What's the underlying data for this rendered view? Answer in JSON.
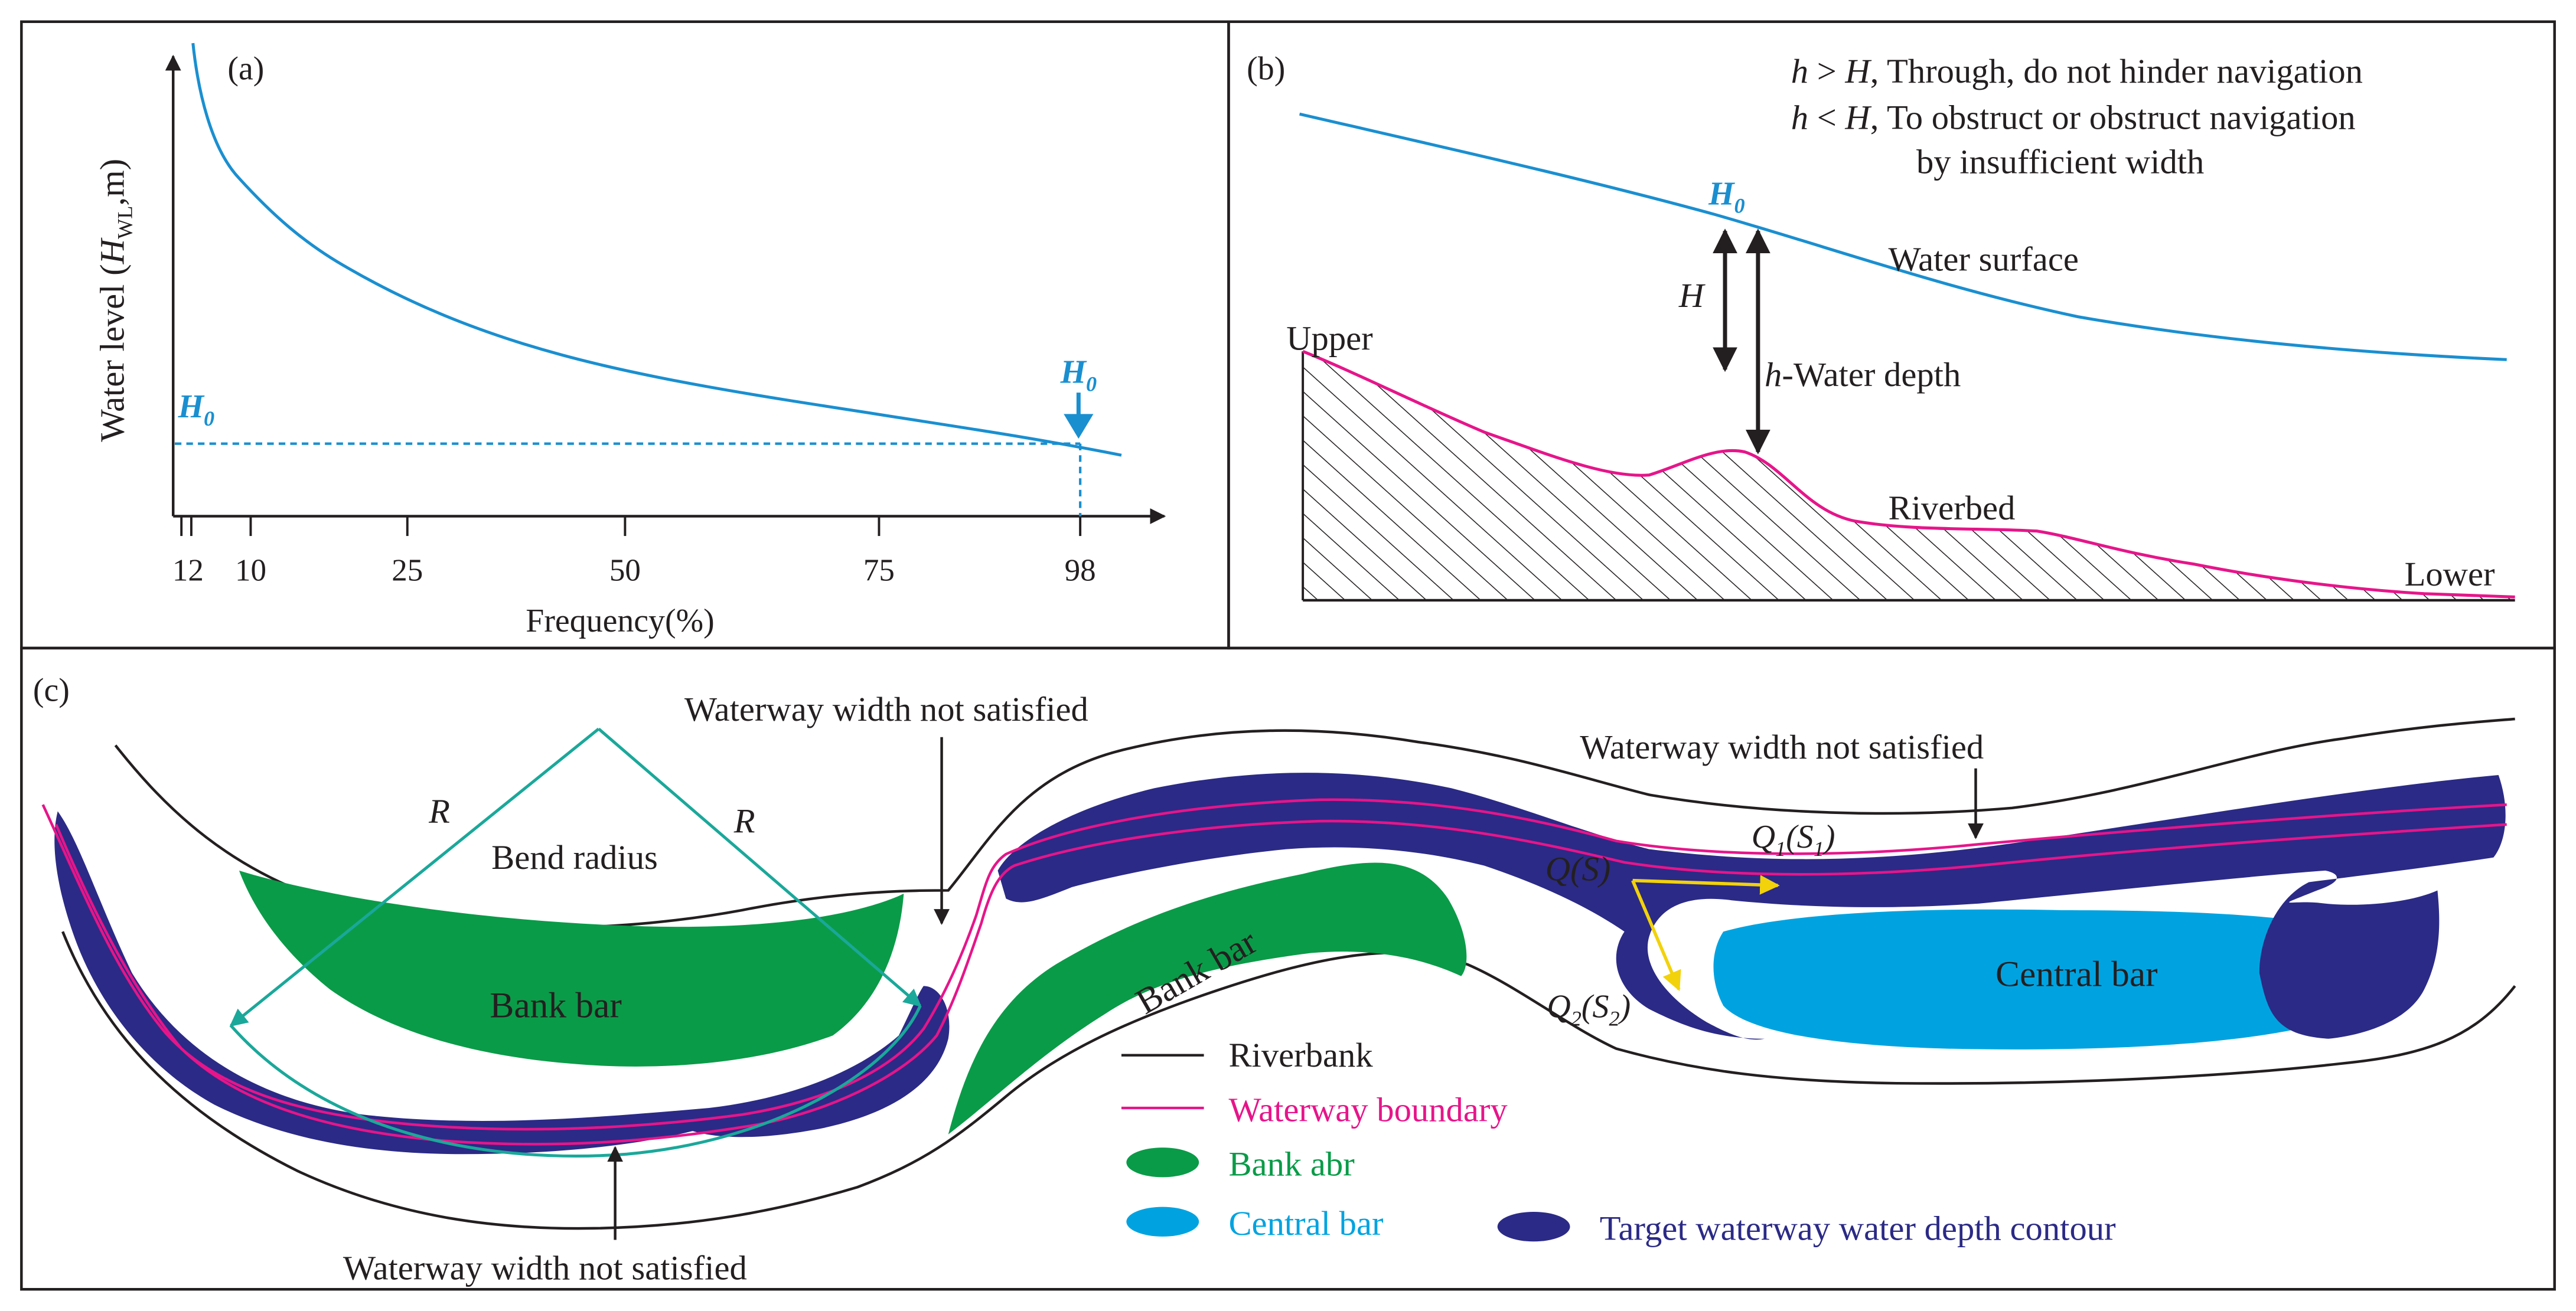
{
  "panel_a": {
    "tag": "(a)",
    "ylabel_pre": "Water level (",
    "ylabel_H": "H",
    "ylabel_sub": "WL",
    "ylabel_post": ",m)",
    "xlabel": "Frequency(%)",
    "ticks": [
      "12",
      "10",
      "25",
      "50",
      "75",
      "98"
    ],
    "h0_left_main": "H",
    "h0_left_sub": "0",
    "h0_marker_main": "H",
    "h0_marker_sub": "0"
  },
  "panel_b": {
    "tag": "(b)",
    "rule1_h": "h",
    "rule1_op": " > ",
    "rule1_H": "H",
    "rule1_text": ", Through, do not hinder navigation",
    "rule2_h": "h",
    "rule2_op": " < ",
    "rule2_H": "H",
    "rule2_text": ", To obstruct or obstruct navigation",
    "rule2_cont": "by insufficient width",
    "h0_main": "H",
    "h0_sub": "0",
    "water_surface": "Water surface",
    "H_label": "H",
    "depth_h": "h",
    "depth_text": "-Water depth",
    "upper": "Upper",
    "lower": "Lower",
    "riverbed": "Riverbed"
  },
  "panel_c": {
    "tag": "(c)",
    "width_top": "Waterway width not satisfied",
    "width_right": "Waterway width not satisfied",
    "width_bottom": "Waterway width not satisfied",
    "R_left": "R",
    "R_right": "R",
    "bend_radius": "Bend radius",
    "bank_bar_left": "Bank bar",
    "bank_bar_mid": "Bank bar",
    "central_bar": "Central bar",
    "Q_main": "Q",
    "Q_S": "(S)",
    "Q1_main": "Q",
    "Q1_sub": "1",
    "Q1_open": "(S",
    "Q1_sub2": "1",
    "Q1_close": ")",
    "Q2_main": "Q",
    "Q2_sub": "2",
    "Q2_open": "(S",
    "Q2_sub2": "2",
    "Q2_close": ")"
  },
  "legend": {
    "riverbank": "Riverbank",
    "waterway_boundary": "Waterway boundary",
    "bank_abr": "Bank abr",
    "central_bar": "Central bar",
    "target_contour": "Target waterway water depth contour"
  },
  "colors": {
    "curve_blue": "#1a8fd0",
    "waterway_magenta": "#e6158a",
    "bank_green": "#0a9b48",
    "central_cyan": "#00a3e0",
    "contour_navy": "#2b2a86",
    "radius_teal": "#1aa89a",
    "arrow_yellow": "#f2d20a",
    "ink": "#231f20"
  }
}
